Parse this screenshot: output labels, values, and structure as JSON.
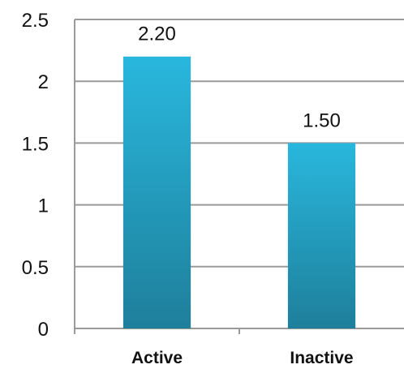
{
  "chart_data": {
    "type": "bar",
    "categories": [
      "Active",
      "Inactive"
    ],
    "values": [
      2.2,
      1.5
    ],
    "data_labels": [
      "2.20",
      "1.50"
    ],
    "y_ticks": [
      "0",
      "0.5",
      "1",
      "1.5",
      "2",
      "2.5"
    ],
    "ylim": [
      0,
      2.5
    ],
    "grid": true,
    "legend": "none",
    "title": "",
    "xlabel": "",
    "ylabel": "",
    "colors": {
      "bar_top": "#29b7dd",
      "bar_bottom": "#1e7f9b",
      "grid": "#9a9a9a"
    }
  }
}
